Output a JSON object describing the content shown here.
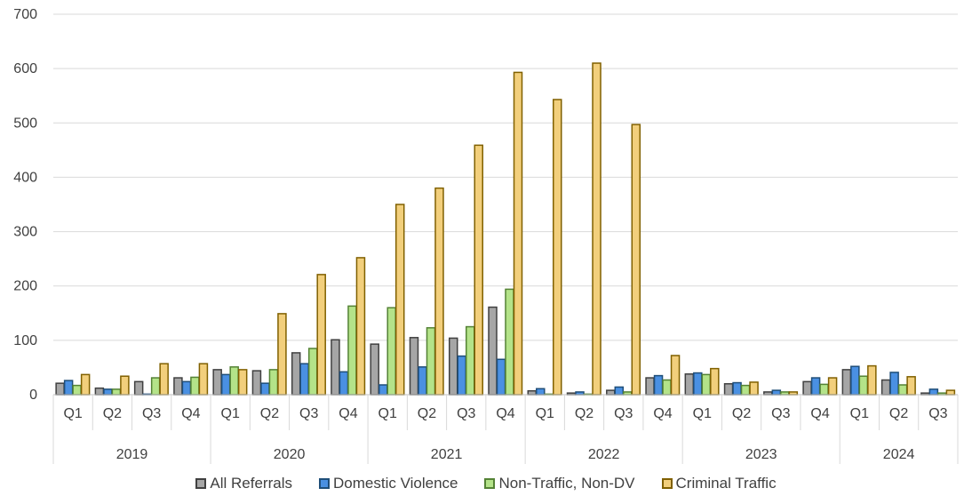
{
  "chart_data": {
    "type": "bar",
    "title": "",
    "xlabel": "",
    "ylabel": "",
    "ylim": [
      0,
      700
    ],
    "yticks": [
      0,
      100,
      200,
      300,
      400,
      500,
      600,
      700
    ],
    "grid": true,
    "legend_position": "bottom",
    "groups": [
      {
        "label": "2019",
        "quarters": [
          "Q1",
          "Q2",
          "Q3",
          "Q4"
        ]
      },
      {
        "label": "2020",
        "quarters": [
          "Q1",
          "Q2",
          "Q3",
          "Q4"
        ]
      },
      {
        "label": "2021",
        "quarters": [
          "Q1",
          "Q2",
          "Q3",
          "Q4"
        ]
      },
      {
        "label": "2022",
        "quarters": [
          "Q1",
          "Q2",
          "Q3",
          "Q4"
        ]
      },
      {
        "label": "2023",
        "quarters": [
          "Q1",
          "Q2",
          "Q3",
          "Q4"
        ]
      },
      {
        "label": "2024",
        "quarters": [
          "Q1",
          "Q2",
          "Q3"
        ]
      }
    ],
    "series": [
      {
        "name": "All Referrals",
        "fill": "#a6a6a6",
        "stroke": "#404040",
        "values": [
          21,
          12,
          24,
          31,
          46,
          44,
          77,
          101,
          93,
          105,
          104,
          161,
          7,
          3,
          8,
          31,
          38,
          20,
          5,
          24,
          46,
          27,
          3
        ]
      },
      {
        "name": "Domestic Violence",
        "fill": "#4a90e2",
        "stroke": "#1f4e79",
        "values": [
          26,
          10,
          1,
          24,
          37,
          21,
          57,
          42,
          18,
          51,
          71,
          65,
          11,
          5,
          14,
          35,
          40,
          22,
          8,
          31,
          52,
          41,
          10
        ]
      },
      {
        "name": "Non-Traffic, Non-DV",
        "fill": "#b4e389",
        "stroke": "#548235",
        "values": [
          17,
          10,
          31,
          32,
          51,
          46,
          85,
          163,
          160,
          123,
          125,
          194,
          1,
          1,
          5,
          27,
          37,
          17,
          5,
          19,
          34,
          18,
          3
        ]
      },
      {
        "name": "Criminal Traffic",
        "fill": "#f2cf7c",
        "stroke": "#806000",
        "values": [
          37,
          34,
          57,
          57,
          46,
          149,
          221,
          252,
          350,
          380,
          459,
          593,
          543,
          610,
          497,
          72,
          48,
          23,
          5,
          31,
          53,
          33,
          8
        ]
      }
    ]
  }
}
